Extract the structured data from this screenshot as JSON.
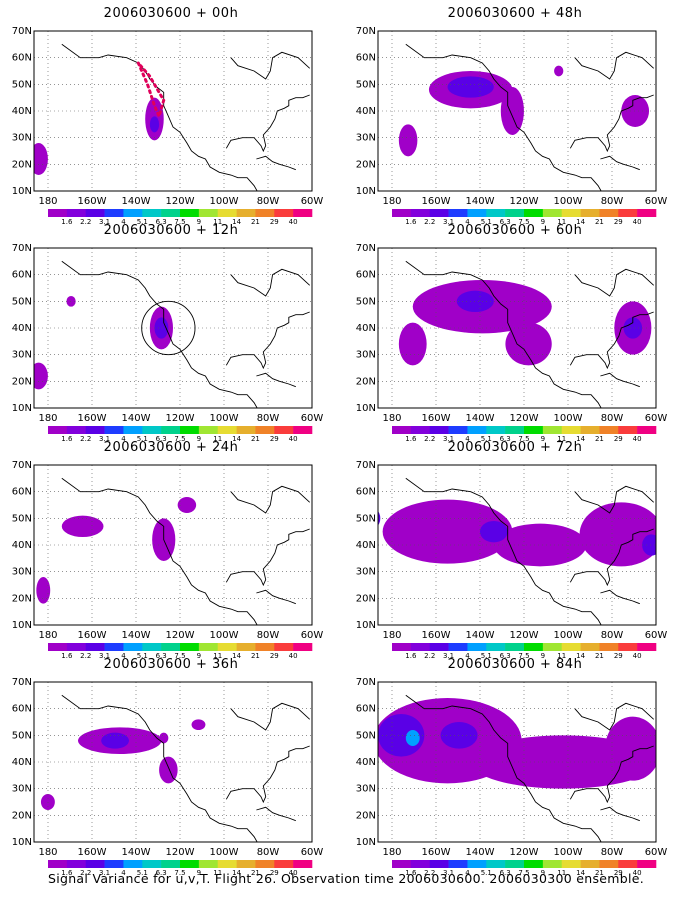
{
  "caption": "Signal Variance for u,v,T. Flight 26. Observation time 2006030600. 2006030300 ensemble.",
  "colorbar": {
    "labels": [
      "1.6",
      "2.2",
      "3.1",
      "4",
      "5.1",
      "6.3",
      "7.5",
      "9",
      "11",
      "14",
      "21",
      "29",
      "40"
    ],
    "colors": [
      "#a000c8",
      "#8200dc",
      "#5a00e6",
      "#1e3cff",
      "#00a0ff",
      "#00c8c8",
      "#00d28c",
      "#00dc00",
      "#a0e632",
      "#e6dc32",
      "#e6af2d",
      "#f08228",
      "#fa3c3c",
      "#f00082"
    ]
  },
  "axes": {
    "x_ticks": [
      "180",
      "160W",
      "140W",
      "120W",
      "100W",
      "80W",
      "60W"
    ],
    "y_ticks": [
      "10N",
      "20N",
      "30N",
      "40N",
      "50N",
      "60N",
      "70N"
    ],
    "lon_range": [
      -170,
      -60
    ],
    "lat_range": [
      10,
      70
    ],
    "grid": "dotted"
  },
  "chart_data": [
    {
      "type": "heatmap",
      "title": "2006030600 + 00h",
      "shading_min": "1.6",
      "blobs": [
        {
          "lon": -178,
          "lat": 22,
          "rx": 4,
          "ry": 6,
          "level": 0
        },
        {
          "lon": -128,
          "lat": 37,
          "rx": 4,
          "ry": 8,
          "level": 0
        },
        {
          "lon": -128,
          "lat": 35,
          "rx": 2,
          "ry": 3,
          "level": 1
        }
      ],
      "track": [
        [
          -135,
          58
        ],
        [
          -131,
          50
        ],
        [
          -128,
          42
        ],
        [
          -126,
          38
        ],
        [
          -124,
          44
        ],
        [
          -130,
          53
        ],
        [
          -134,
          57
        ]
      ]
    },
    {
      "type": "heatmap",
      "title": "2006030600 + 48h",
      "shading_min": "1.6",
      "blobs": [
        {
          "lon": -140,
          "lat": 48,
          "rx": 18,
          "ry": 7,
          "level": 0
        },
        {
          "lon": -140,
          "lat": 49,
          "rx": 10,
          "ry": 4,
          "level": 1
        },
        {
          "lon": -122,
          "lat": 40,
          "rx": 5,
          "ry": 9,
          "level": 0
        },
        {
          "lon": -167,
          "lat": 29,
          "rx": 4,
          "ry": 6,
          "level": 0
        },
        {
          "lon": -102,
          "lat": 55,
          "rx": 2,
          "ry": 2,
          "level": 0
        },
        {
          "lon": -69,
          "lat": 40,
          "rx": 6,
          "ry": 6,
          "level": 0
        }
      ]
    },
    {
      "type": "heatmap",
      "title": "2006030600 + 12h",
      "shading_min": "1.6",
      "blobs": [
        {
          "lon": -125,
          "lat": 40,
          "rx": 5,
          "ry": 8,
          "level": 0
        },
        {
          "lon": -125,
          "lat": 40,
          "rx": 3,
          "ry": 4,
          "level": 1
        },
        {
          "lon": -178,
          "lat": 22,
          "rx": 4,
          "ry": 5,
          "level": 0
        },
        {
          "lon": -164,
          "lat": 50,
          "rx": 2,
          "ry": 2,
          "level": 0
        }
      ],
      "circle": {
        "lon": -122,
        "lat": 40,
        "r": 10
      }
    },
    {
      "type": "heatmap",
      "title": "2006030600 + 60h",
      "shading_min": "1.6",
      "blobs": [
        {
          "lon": -135,
          "lat": 48,
          "rx": 30,
          "ry": 10,
          "level": 0
        },
        {
          "lon": -138,
          "lat": 50,
          "rx": 8,
          "ry": 4,
          "level": 1
        },
        {
          "lon": -165,
          "lat": 34,
          "rx": 6,
          "ry": 8,
          "level": 0
        },
        {
          "lon": -115,
          "lat": 34,
          "rx": 10,
          "ry": 8,
          "level": 0
        },
        {
          "lon": -70,
          "lat": 40,
          "rx": 8,
          "ry": 10,
          "level": 0
        },
        {
          "lon": -70,
          "lat": 40,
          "rx": 4,
          "ry": 4,
          "level": 1
        }
      ]
    },
    {
      "type": "heatmap",
      "title": "2006030600 + 24h",
      "shading_min": "1.6",
      "blobs": [
        {
          "lon": -159,
          "lat": 47,
          "rx": 9,
          "ry": 4,
          "level": 0
        },
        {
          "lon": -124,
          "lat": 42,
          "rx": 5,
          "ry": 8,
          "level": 0
        },
        {
          "lon": -114,
          "lat": 55,
          "rx": 4,
          "ry": 3,
          "level": 0
        },
        {
          "lon": -176,
          "lat": 23,
          "rx": 3,
          "ry": 5,
          "level": 0
        }
      ]
    },
    {
      "type": "heatmap",
      "title": "2006030600 + 72h",
      "shading_min": "1.6",
      "blobs": [
        {
          "lon": -150,
          "lat": 45,
          "rx": 28,
          "ry": 12,
          "level": 0
        },
        {
          "lon": -110,
          "lat": 40,
          "rx": 20,
          "ry": 8,
          "level": 0
        },
        {
          "lon": -75,
          "lat": 44,
          "rx": 18,
          "ry": 12,
          "level": 0
        },
        {
          "lon": -185,
          "lat": 50,
          "rx": 6,
          "ry": 5,
          "level": 1
        },
        {
          "lon": -130,
          "lat": 45,
          "rx": 6,
          "ry": 4,
          "level": 1
        },
        {
          "lon": -62,
          "lat": 40,
          "rx": 4,
          "ry": 4,
          "level": 1
        }
      ]
    },
    {
      "type": "heatmap",
      "title": "2006030600 + 36h",
      "shading_min": "1.6",
      "blobs": [
        {
          "lon": -143,
          "lat": 48,
          "rx": 18,
          "ry": 5,
          "level": 0
        },
        {
          "lon": -145,
          "lat": 48,
          "rx": 6,
          "ry": 3,
          "level": 1
        },
        {
          "lon": -122,
          "lat": 37,
          "rx": 4,
          "ry": 5,
          "level": 0
        },
        {
          "lon": -109,
          "lat": 54,
          "rx": 3,
          "ry": 2,
          "level": 0
        },
        {
          "lon": -174,
          "lat": 25,
          "rx": 3,
          "ry": 3,
          "level": 0
        },
        {
          "lon": -124,
          "lat": 49,
          "rx": 2,
          "ry": 2,
          "level": 0
        }
      ]
    },
    {
      "type": "heatmap",
      "title": "2006030600 + 84h",
      "shading_min": "1.6",
      "blobs": [
        {
          "lon": -150,
          "lat": 48,
          "rx": 32,
          "ry": 16,
          "level": 0
        },
        {
          "lon": -100,
          "lat": 40,
          "rx": 40,
          "ry": 10,
          "level": 0
        },
        {
          "lon": -70,
          "lat": 45,
          "rx": 12,
          "ry": 12,
          "level": 0
        },
        {
          "lon": -170,
          "lat": 50,
          "rx": 10,
          "ry": 8,
          "level": 1
        },
        {
          "lon": -145,
          "lat": 50,
          "rx": 8,
          "ry": 5,
          "level": 1
        },
        {
          "lon": -165,
          "lat": 49,
          "rx": 3,
          "ry": 3,
          "level": 2
        }
      ]
    }
  ]
}
